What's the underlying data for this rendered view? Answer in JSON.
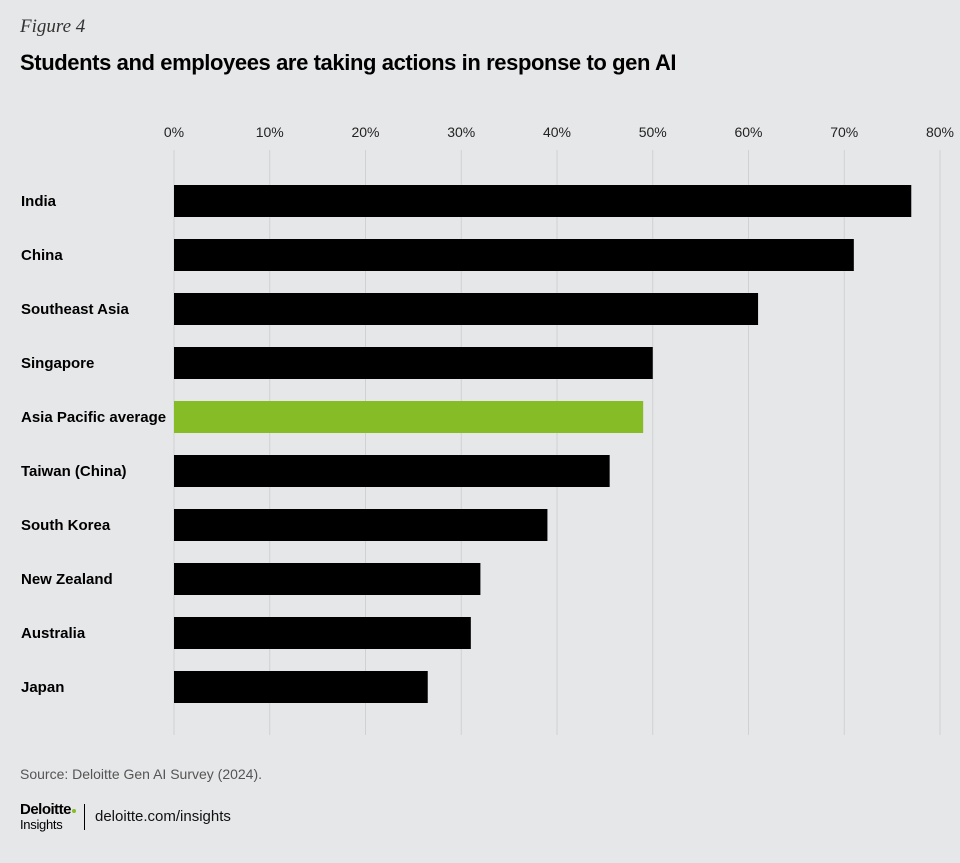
{
  "figure_label": "Figure 4",
  "source": "Source: Deloitte Gen AI Survey (2024).",
  "footer": {
    "brand_name": "Deloitte",
    "brand_sub": "Insights",
    "url": "deloitte.com/insights"
  },
  "colors": {
    "background": "#e6e7e9",
    "bar_default": "#000000",
    "bar_highlight": "#86bc25",
    "gridline": "#cfd1d4"
  },
  "chart_data": {
    "type": "bar",
    "orientation": "horizontal",
    "title": "Students and employees are taking actions in response to gen AI",
    "categories": [
      "India",
      "China",
      "Southeast Asia",
      "Singapore",
      "Asia Pacific average",
      "Taiwan (China)",
      "South Korea",
      "New Zealand",
      "Australia",
      "Japan"
    ],
    "values": [
      77,
      71,
      61,
      50,
      49,
      45.5,
      39,
      32,
      31,
      26.5
    ],
    "highlight_category": "Asia Pacific average",
    "xlim": [
      0,
      80
    ],
    "xticks": [
      0,
      10,
      20,
      30,
      40,
      50,
      60,
      70,
      80
    ],
    "tick_format": "percent",
    "axis_position": "top",
    "grid": true,
    "legend": false
  }
}
